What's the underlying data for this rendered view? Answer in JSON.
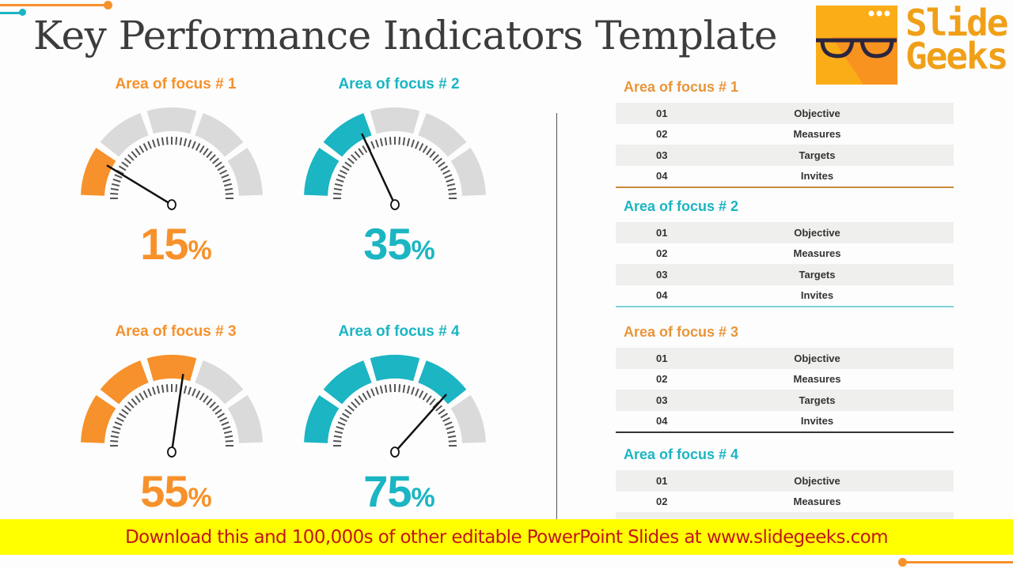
{
  "title": "Key Performance Indicators Template",
  "logo": {
    "name": "Slide Geeks",
    "line1": "Slide",
    "line2": "Geeks",
    "icon": "glasses-icon"
  },
  "colors": {
    "orange": "#f7912b",
    "teal": "#1bb5c3",
    "gray": "#d9dad9",
    "text": "#3b3d3c",
    "banner_bg": "#ffff00",
    "banner_text": "#c0171c"
  },
  "gauges": [
    {
      "label": "Area of focus # 1",
      "value": "15",
      "unit": "%",
      "color": "#f7912b"
    },
    {
      "label": "Area of focus # 2",
      "value": "35",
      "unit": "%",
      "color": "#1bb5c3"
    },
    {
      "label": "Area of focus # 3",
      "value": "55",
      "unit": "%",
      "color": "#f7912b"
    },
    {
      "label": "Area of focus # 4",
      "value": "75",
      "unit": "%",
      "color": "#1bb5c3"
    }
  ],
  "chart_data": {
    "type": "gauge",
    "title": "Key Performance Indicators Template",
    "categories": [
      "Area of focus # 1",
      "Area of focus # 2",
      "Area of focus # 3",
      "Area of focus # 4"
    ],
    "values": [
      15,
      35,
      55,
      75
    ],
    "unit": "%",
    "range": [
      0,
      100
    ],
    "segments": 5
  },
  "tables": [
    {
      "title": "Area of focus # 1",
      "color": "#e8953a",
      "rule": "#c98a3c",
      "rows": [
        {
          "num": "01",
          "text": "Objective"
        },
        {
          "num": "02",
          "text": "Measures"
        },
        {
          "num": "03",
          "text": "Targets"
        },
        {
          "num": "04",
          "text": "Invites"
        }
      ]
    },
    {
      "title": "Area of focus # 2",
      "color": "#1bb5c3",
      "rule": "#7fd3da",
      "rows": [
        {
          "num": "01",
          "text": "Objective"
        },
        {
          "num": "02",
          "text": "Measures"
        },
        {
          "num": "03",
          "text": "Targets"
        },
        {
          "num": "04",
          "text": "Invites"
        }
      ]
    },
    {
      "title": "Area of focus # 3",
      "color": "#e8953a",
      "rule": "#333333",
      "rows": [
        {
          "num": "01",
          "text": "Objective"
        },
        {
          "num": "02",
          "text": "Measures"
        },
        {
          "num": "03",
          "text": "Targets"
        },
        {
          "num": "04",
          "text": "Invites"
        }
      ]
    },
    {
      "title": "Area of focus # 4",
      "color": "#1bb5c3",
      "rule": "",
      "rows": [
        {
          "num": "01",
          "text": "Objective"
        },
        {
          "num": "02",
          "text": "Measures"
        }
      ]
    }
  ],
  "banner": {
    "text": "Download this and 100,000s of other editable PowerPoint Slides at www.slidegeeks.com"
  }
}
